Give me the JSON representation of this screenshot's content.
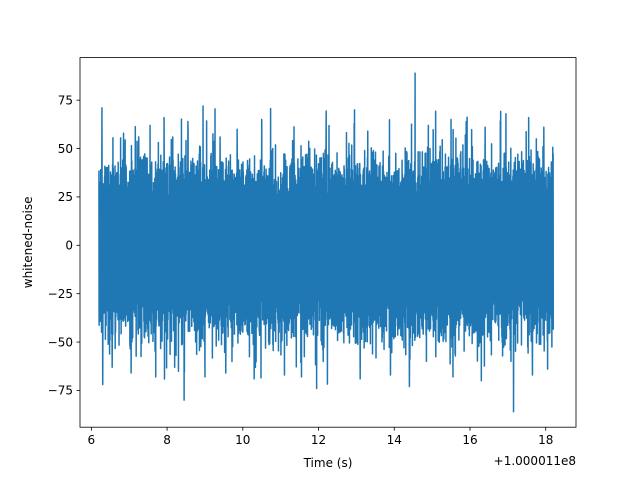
{
  "chart_data": {
    "type": "line",
    "xlabel": "Time (s)",
    "ylabel": "whitened-noise",
    "x_offset_label": "+1.000011e8",
    "xlim": [
      5.7,
      18.8
    ],
    "ylim": [
      -94,
      97
    ],
    "x_ticks": [
      6,
      8,
      10,
      12,
      14,
      16,
      18
    ],
    "x_tick_labels": [
      "6",
      "8",
      "10",
      "12",
      "14",
      "16",
      "18"
    ],
    "y_ticks": [
      75,
      50,
      25,
      0,
      -25,
      -50,
      -75
    ],
    "y_tick_labels": [
      "75",
      "50",
      "25",
      "0",
      "−25",
      "−50",
      "−75"
    ],
    "grid": false,
    "series": [
      {
        "color": "#1f77b4",
        "x_range": [
          6.2,
          18.2
        ],
        "mean": 0,
        "band": [
          -35,
          33
        ],
        "upper_spikes": [
          [
            6.28,
            71
          ],
          [
            6.55,
            55
          ],
          [
            6.85,
            58
          ],
          [
            7.25,
            56
          ],
          [
            7.55,
            62
          ],
          [
            7.92,
            66
          ],
          [
            8.15,
            56
          ],
          [
            8.55,
            64
          ],
          [
            8.95,
            72
          ],
          [
            9.4,
            56
          ],
          [
            9.85,
            60
          ],
          [
            10.5,
            65
          ],
          [
            11.1,
            57
          ],
          [
            11.55,
            70
          ],
          [
            12.2,
            63
          ],
          [
            12.95,
            70
          ],
          [
            13.3,
            59
          ],
          [
            13.9,
            66
          ],
          [
            14.55,
            89
          ],
          [
            14.9,
            62
          ],
          [
            15.5,
            65
          ],
          [
            15.9,
            64
          ],
          [
            16.4,
            61
          ],
          [
            16.95,
            68
          ],
          [
            17.55,
            66
          ],
          [
            17.95,
            61
          ]
        ],
        "lower_spikes": [
          [
            6.3,
            -72
          ],
          [
            6.55,
            -63
          ],
          [
            7.05,
            -66
          ],
          [
            7.7,
            -68
          ],
          [
            8.2,
            -63
          ],
          [
            8.45,
            -80
          ],
          [
            9.0,
            -68
          ],
          [
            9.55,
            -66
          ],
          [
            10.3,
            -69
          ],
          [
            11.1,
            -67
          ],
          [
            11.55,
            -68
          ],
          [
            11.95,
            -74
          ],
          [
            13.1,
            -69
          ],
          [
            13.9,
            -67
          ],
          [
            14.4,
            -73
          ],
          [
            14.85,
            -60
          ],
          [
            15.55,
            -68
          ],
          [
            16.3,
            -70
          ],
          [
            17.15,
            -86
          ],
          [
            17.65,
            -67
          ],
          [
            18.05,
            -64
          ]
        ]
      }
    ]
  }
}
